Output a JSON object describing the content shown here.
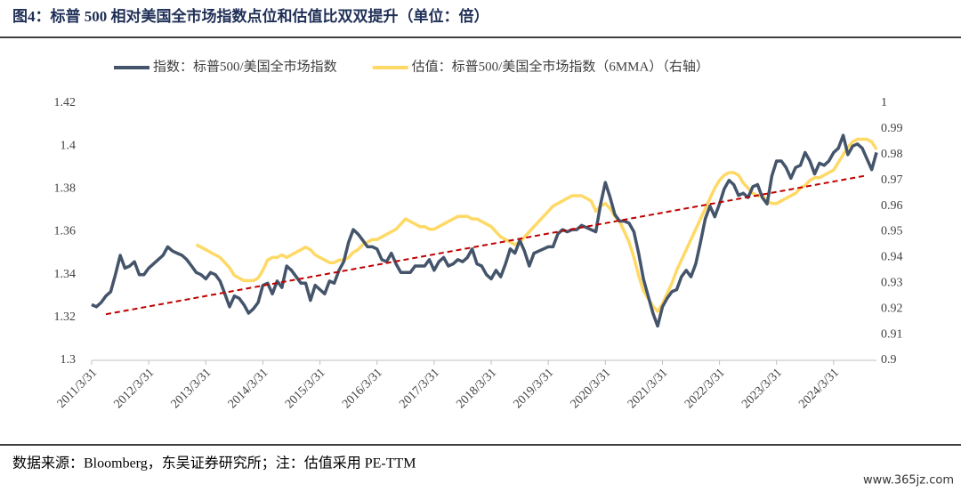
{
  "chart_data": {
    "type": "line",
    "title": "图4：标普 500 相对美国全市场指数点位和估值比双双提升（单位：倍）",
    "source": "数据来源：Bloomberg，东吴证券研究所；注：估值采用 PE-TTM",
    "watermark": "www.365jz.com",
    "categories": [
      "2011/3/31",
      null,
      null,
      null,
      null,
      null,
      null,
      null,
      null,
      null,
      null,
      null,
      "2012/3/31",
      null,
      null,
      null,
      null,
      null,
      null,
      null,
      null,
      null,
      null,
      null,
      "2013/3/31",
      null,
      null,
      null,
      null,
      null,
      null,
      null,
      null,
      null,
      null,
      null,
      "2014/3/31",
      null,
      null,
      null,
      null,
      null,
      null,
      null,
      null,
      null,
      null,
      null,
      "2015/3/31",
      null,
      null,
      null,
      null,
      null,
      null,
      null,
      null,
      null,
      null,
      null,
      "2016/3/31",
      null,
      null,
      null,
      null,
      null,
      null,
      null,
      null,
      null,
      null,
      null,
      "2017/3/31",
      null,
      null,
      null,
      null,
      null,
      null,
      null,
      null,
      null,
      null,
      null,
      "2018/3/31",
      null,
      null,
      null,
      null,
      null,
      null,
      null,
      null,
      null,
      null,
      null,
      "2019/3/31",
      null,
      null,
      null,
      null,
      null,
      null,
      null,
      null,
      null,
      null,
      null,
      "2020/3/31",
      null,
      null,
      null,
      null,
      null,
      null,
      null,
      null,
      null,
      null,
      null,
      "2021/3/31",
      null,
      null,
      null,
      null,
      null,
      null,
      null,
      null,
      null,
      null,
      null,
      "2022/3/31",
      null,
      null,
      null,
      null,
      null,
      null,
      null,
      null,
      null,
      null,
      null,
      "2023/3/31",
      null,
      null,
      null,
      null,
      null,
      null,
      null,
      null,
      null,
      null,
      null,
      "2024/3/31",
      null,
      null,
      null,
      null,
      null,
      null,
      null,
      null,
      null
    ],
    "series": [
      {
        "name": "指数：标普500/美国全市场指数",
        "color": "#44546a",
        "width": 3.5,
        "values": [
          1.326,
          1.325,
          1.327,
          1.33,
          1.332,
          1.34,
          1.349,
          1.343,
          1.344,
          1.346,
          1.34,
          1.34,
          1.343,
          1.345,
          1.347,
          1.349,
          1.353,
          1.351,
          1.35,
          1.349,
          1.347,
          1.344,
          1.341,
          1.34,
          1.338,
          1.341,
          1.34,
          1.337,
          1.331,
          1.325,
          1.33,
          1.329,
          1.326,
          1.322,
          1.324,
          1.327,
          1.335,
          1.336,
          1.331,
          1.337,
          1.334,
          1.344,
          1.342,
          1.339,
          1.336,
          1.336,
          1.328,
          1.335,
          1.333,
          1.331,
          1.337,
          1.336,
          1.342,
          1.346,
          1.355,
          1.361,
          1.359,
          1.356,
          1.353,
          1.353,
          1.352,
          1.347,
          1.346,
          1.35,
          1.345,
          1.341,
          1.341,
          1.341,
          1.344,
          1.344,
          1.344,
          1.347,
          1.342,
          1.346,
          1.348,
          1.344,
          1.345,
          1.347,
          1.346,
          1.348,
          1.352,
          1.345,
          1.344,
          1.34,
          1.338,
          1.342,
          1.339,
          1.345,
          1.352,
          1.35,
          1.356,
          1.351,
          1.344,
          1.35,
          1.351,
          1.352,
          1.353,
          1.353,
          1.359,
          1.361,
          1.36,
          1.361,
          1.361,
          1.363,
          1.362,
          1.361,
          1.36,
          1.373,
          1.383,
          1.376,
          1.368,
          1.365,
          1.365,
          1.364,
          1.36,
          1.35,
          1.338,
          1.33,
          1.322,
          1.316,
          1.325,
          1.329,
          1.332,
          1.333,
          1.339,
          1.342,
          1.339,
          1.345,
          1.355,
          1.366,
          1.372,
          1.367,
          1.373,
          1.38,
          1.384,
          1.382,
          1.377,
          1.378,
          1.376,
          1.381,
          1.382,
          1.376,
          1.373,
          1.386,
          1.393,
          1.393,
          1.39,
          1.385,
          1.39,
          1.391,
          1.397,
          1.393,
          1.387,
          1.392,
          1.391,
          1.393,
          1.397,
          1.399,
          1.405,
          1.396,
          1.4,
          1.401,
          1.399,
          1.394,
          1.389,
          1.397
        ]
      },
      {
        "name": "估值：标普500/美国全市场指数（6MMA）（右轴）",
        "color": "#ffd966",
        "width": 3.5,
        "axis": "y2",
        "values": [
          null,
          null,
          null,
          null,
          null,
          null,
          null,
          null,
          null,
          null,
          null,
          null,
          null,
          null,
          null,
          null,
          null,
          null,
          null,
          null,
          null,
          null,
          0.945,
          0.944,
          0.943,
          0.942,
          0.941,
          0.94,
          0.938,
          0.936,
          0.933,
          0.932,
          0.931,
          0.931,
          0.931,
          0.932,
          0.935,
          0.939,
          0.94,
          0.94,
          0.941,
          0.94,
          0.941,
          0.942,
          0.943,
          0.944,
          0.943,
          0.941,
          0.94,
          0.939,
          0.938,
          0.938,
          0.939,
          0.939,
          0.94,
          0.942,
          0.943,
          0.945,
          0.946,
          0.947,
          0.947,
          0.948,
          0.949,
          0.95,
          0.951,
          0.953,
          0.955,
          0.954,
          0.953,
          0.952,
          0.952,
          0.951,
          0.951,
          0.952,
          0.953,
          0.954,
          0.955,
          0.956,
          0.956,
          0.956,
          0.955,
          0.955,
          0.954,
          0.953,
          0.952,
          0.95,
          0.948,
          0.947,
          0.946,
          0.945,
          0.946,
          0.948,
          0.95,
          0.952,
          0.954,
          0.956,
          0.958,
          0.96,
          0.961,
          0.962,
          0.963,
          0.964,
          0.964,
          0.964,
          0.963,
          0.962,
          0.958,
          0.96,
          0.961,
          0.959,
          0.956,
          0.954,
          0.95,
          0.946,
          0.94,
          0.933,
          0.927,
          0.924,
          0.921,
          0.919,
          0.922,
          0.926,
          0.93,
          0.935,
          0.939,
          0.943,
          0.947,
          0.951,
          0.955,
          0.959,
          0.963,
          0.967,
          0.97,
          0.972,
          0.973,
          0.973,
          0.972,
          0.969,
          0.967,
          0.965,
          0.964,
          0.964,
          0.962,
          0.961,
          0.961,
          0.962,
          0.963,
          0.964,
          0.965,
          0.967,
          0.968,
          0.97,
          0.971,
          0.971,
          0.972,
          0.973,
          0.974,
          0.977,
          0.98,
          0.983,
          0.985,
          0.986,
          0.986,
          0.986,
          0.985,
          0.982
        ]
      },
      {
        "color": "#c00000",
        "width": 2,
        "dashed": true,
        "connect_gaps": true,
        "values": [
          null,
          null,
          null,
          1.3215,
          null,
          null,
          null,
          null,
          null,
          null,
          null,
          null,
          null,
          null,
          null,
          null,
          null,
          null,
          null,
          null,
          null,
          null,
          null,
          null,
          null,
          null,
          null,
          null,
          null,
          null,
          null,
          null,
          null,
          null,
          null,
          null,
          null,
          null,
          null,
          null,
          null,
          null,
          null,
          null,
          null,
          null,
          null,
          null,
          null,
          null,
          null,
          null,
          null,
          null,
          null,
          null,
          null,
          null,
          null,
          null,
          null,
          null,
          null,
          null,
          null,
          null,
          null,
          null,
          null,
          null,
          null,
          null,
          null,
          null,
          null,
          null,
          null,
          null,
          null,
          null,
          null,
          null,
          null,
          null,
          null,
          null,
          null,
          null,
          null,
          null,
          null,
          null,
          null,
          null,
          null,
          null,
          null,
          null,
          null,
          null,
          null,
          null,
          null,
          null,
          null,
          null,
          null,
          null,
          null,
          null,
          null,
          null,
          null,
          null,
          null,
          null,
          null,
          null,
          null,
          null,
          null,
          null,
          null,
          null,
          null,
          null,
          null,
          null,
          null,
          null,
          null,
          null,
          null,
          null,
          null,
          null,
          null,
          null,
          null,
          null,
          null,
          null,
          null,
          null,
          null,
          null,
          null,
          null,
          null,
          null,
          null,
          null,
          null,
          null,
          null,
          null,
          null,
          null,
          null,
          null,
          null,
          null,
          null,
          1.3863,
          null,
          null
        ]
      }
    ],
    "ylim": [
      1.3,
      1.42
    ],
    "yticks": [
      1.3,
      1.32,
      1.34,
      1.36,
      1.38,
      1.4,
      1.42
    ],
    "y2lim": [
      0.9,
      1
    ],
    "y2ticks": [
      0.9,
      0.91,
      0.92,
      0.93,
      0.94,
      0.95,
      0.96,
      0.97,
      0.98,
      0.99,
      1
    ],
    "legend": "top",
    "grid": false
  }
}
